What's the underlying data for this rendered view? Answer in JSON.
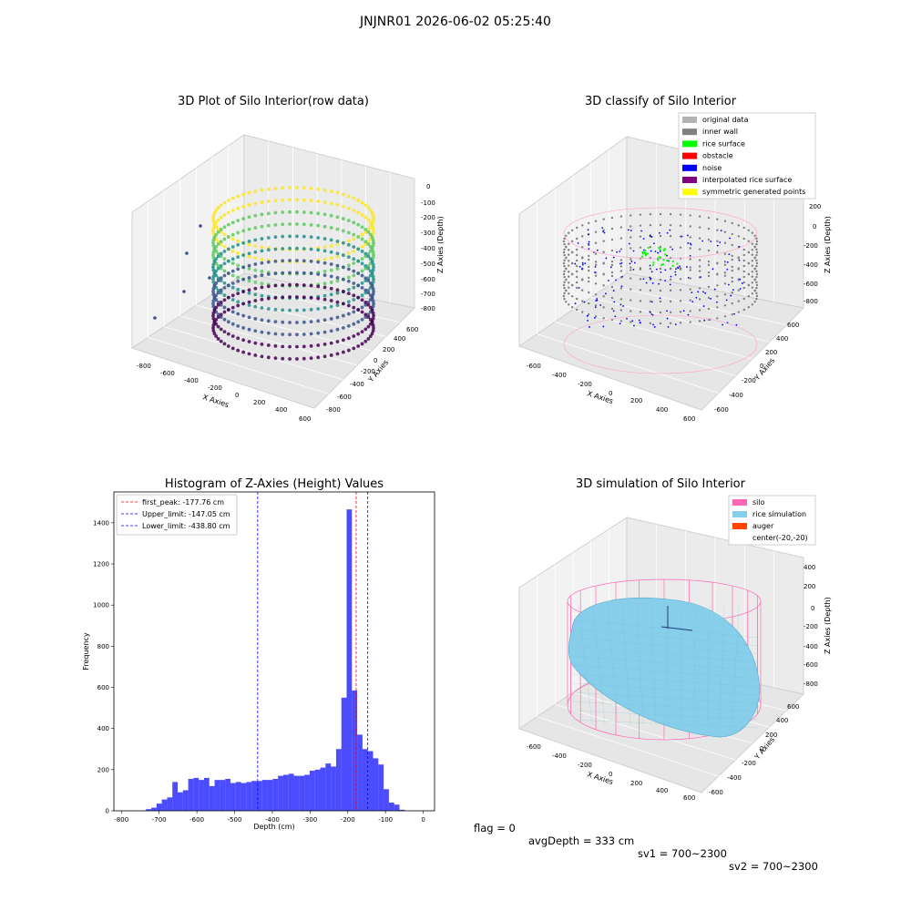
{
  "page": {
    "suptitle": "JNJNR01 2026-06-02 05:25:40"
  },
  "panel_raw": {
    "title": "3D Plot of Silo Interior(row data)",
    "xlabel": "X Axies",
    "ylabel": "Y Axies",
    "zlabel": "Z Axies (Depth)",
    "x_ticks": [
      "-800",
      "-600",
      "-400",
      "-200",
      "0",
      "200",
      "400",
      "600"
    ],
    "y_ticks": [
      "-800",
      "-600",
      "-400",
      "-200",
      "0",
      "200",
      "400",
      "600"
    ],
    "z_ticks": [
      "0",
      "-100",
      "-200",
      "-300",
      "-400",
      "-500",
      "-600",
      "-700",
      "-800"
    ],
    "colormap": [
      "#440154",
      "#3b528b",
      "#21918c",
      "#5ec962",
      "#fde725"
    ]
  },
  "panel_classify": {
    "title": "3D classify of Silo Interior",
    "xlabel": "X Axies",
    "ylabel": "Y Axies",
    "zlabel": "Z Axies (Depth)",
    "x_ticks": [
      "-600",
      "-400",
      "-200",
      "0",
      "200",
      "400",
      "600"
    ],
    "y_ticks": [
      "-600",
      "-400",
      "-200",
      "0",
      "200",
      "400",
      "600"
    ],
    "z_ticks": [
      "200",
      "0",
      "-200",
      "-400",
      "-600",
      "-800"
    ],
    "legend": [
      {
        "label": "original data",
        "color": "#b3b3b3"
      },
      {
        "label": "inner wall",
        "color": "#808080"
      },
      {
        "label": "rice surface",
        "color": "#00ff00"
      },
      {
        "label": "obstacle",
        "color": "#ff0000"
      },
      {
        "label": "noise",
        "color": "#0000ff"
      },
      {
        "label": "interpolated rice surface",
        "color": "#800080"
      },
      {
        "label": "symmetric generated points",
        "color": "#ffff00"
      }
    ]
  },
  "panel_sim": {
    "title": "3D simulation of Silo Interior",
    "xlabel": "X Axies",
    "ylabel": "Y Axies",
    "zlabel": "Z Axies (Depth)",
    "x_ticks": [
      "-600",
      "-400",
      "-200",
      "0",
      "200",
      "400",
      "600"
    ],
    "y_ticks": [
      "-600",
      "-400",
      "-200",
      "0",
      "200",
      "400",
      "600"
    ],
    "z_ticks": [
      "400",
      "200",
      "0",
      "-200",
      "-400",
      "-600",
      "-800"
    ],
    "legend": [
      {
        "label": "silo",
        "color": "#ff69b4"
      },
      {
        "label": "rice simulation",
        "color": "#87ceeb"
      },
      {
        "label": "auger",
        "color": "#ff4500"
      },
      {
        "label": "center(-20,-20)",
        "color": ""
      }
    ]
  },
  "chart_data": {
    "type": "bar",
    "title": "Histogram of Z-Axies (Height) Values",
    "xlabel": "Depth (cm)",
    "ylabel": "Frequency",
    "xlim": [
      -820,
      30
    ],
    "ylim": [
      0,
      1550
    ],
    "x_ticks": [
      -800,
      -700,
      -600,
      -500,
      -400,
      -300,
      -200,
      -100,
      0
    ],
    "y_ticks": [
      0,
      200,
      400,
      600,
      800,
      1000,
      1200,
      1400
    ],
    "bin_width": 14,
    "bar_color": "#0000ff",
    "bins": [
      {
        "x": -742,
        "value": 2
      },
      {
        "x": -728,
        "value": 8
      },
      {
        "x": -714,
        "value": 15
      },
      {
        "x": -700,
        "value": 35
      },
      {
        "x": -686,
        "value": 55
      },
      {
        "x": -672,
        "value": 65
      },
      {
        "x": -658,
        "value": 140
      },
      {
        "x": -644,
        "value": 90
      },
      {
        "x": -630,
        "value": 100
      },
      {
        "x": -616,
        "value": 155
      },
      {
        "x": -602,
        "value": 160
      },
      {
        "x": -588,
        "value": 150
      },
      {
        "x": -574,
        "value": 160
      },
      {
        "x": -560,
        "value": 120
      },
      {
        "x": -546,
        "value": 150
      },
      {
        "x": -532,
        "value": 150
      },
      {
        "x": -518,
        "value": 155
      },
      {
        "x": -504,
        "value": 135
      },
      {
        "x": -490,
        "value": 140
      },
      {
        "x": -476,
        "value": 135
      },
      {
        "x": -462,
        "value": 140
      },
      {
        "x": -448,
        "value": 145
      },
      {
        "x": -434,
        "value": 145
      },
      {
        "x": -420,
        "value": 150
      },
      {
        "x": -406,
        "value": 150
      },
      {
        "x": -392,
        "value": 155
      },
      {
        "x": -378,
        "value": 170
      },
      {
        "x": -364,
        "value": 175
      },
      {
        "x": -350,
        "value": 180
      },
      {
        "x": -336,
        "value": 170
      },
      {
        "x": -322,
        "value": 170
      },
      {
        "x": -308,
        "value": 175
      },
      {
        "x": -294,
        "value": 195
      },
      {
        "x": -280,
        "value": 200
      },
      {
        "x": -266,
        "value": 210
      },
      {
        "x": -252,
        "value": 230
      },
      {
        "x": -238,
        "value": 215
      },
      {
        "x": -224,
        "value": 300
      },
      {
        "x": -210,
        "value": 550
      },
      {
        "x": -196,
        "value": 1465
      },
      {
        "x": -182,
        "value": 585
      },
      {
        "x": -168,
        "value": 370
      },
      {
        "x": -154,
        "value": 300
      },
      {
        "x": -140,
        "value": 290
      },
      {
        "x": -126,
        "value": 255
      },
      {
        "x": -112,
        "value": 225
      },
      {
        "x": -98,
        "value": 105
      },
      {
        "x": -84,
        "value": 40
      },
      {
        "x": -70,
        "value": 30
      },
      {
        "x": -56,
        "value": 5
      }
    ],
    "vlines": [
      {
        "label": "first_peak: -177.76 cm",
        "x": -177.76,
        "color": "#ff0000"
      },
      {
        "label": "Upper_limit: -147.05 cm",
        "x": -147.05,
        "color": "#0000ff"
      },
      {
        "label": "Lower_limit: -438.80 cm",
        "x": -438.8,
        "color": "#0000ff"
      }
    ],
    "legend_position": "top-left"
  },
  "footer": {
    "flag": "flag = 0",
    "avg": "avgDepth = 333 cm",
    "sv1": "sv1 = 700~2300",
    "sv2": "sv2 = 700~2300"
  }
}
